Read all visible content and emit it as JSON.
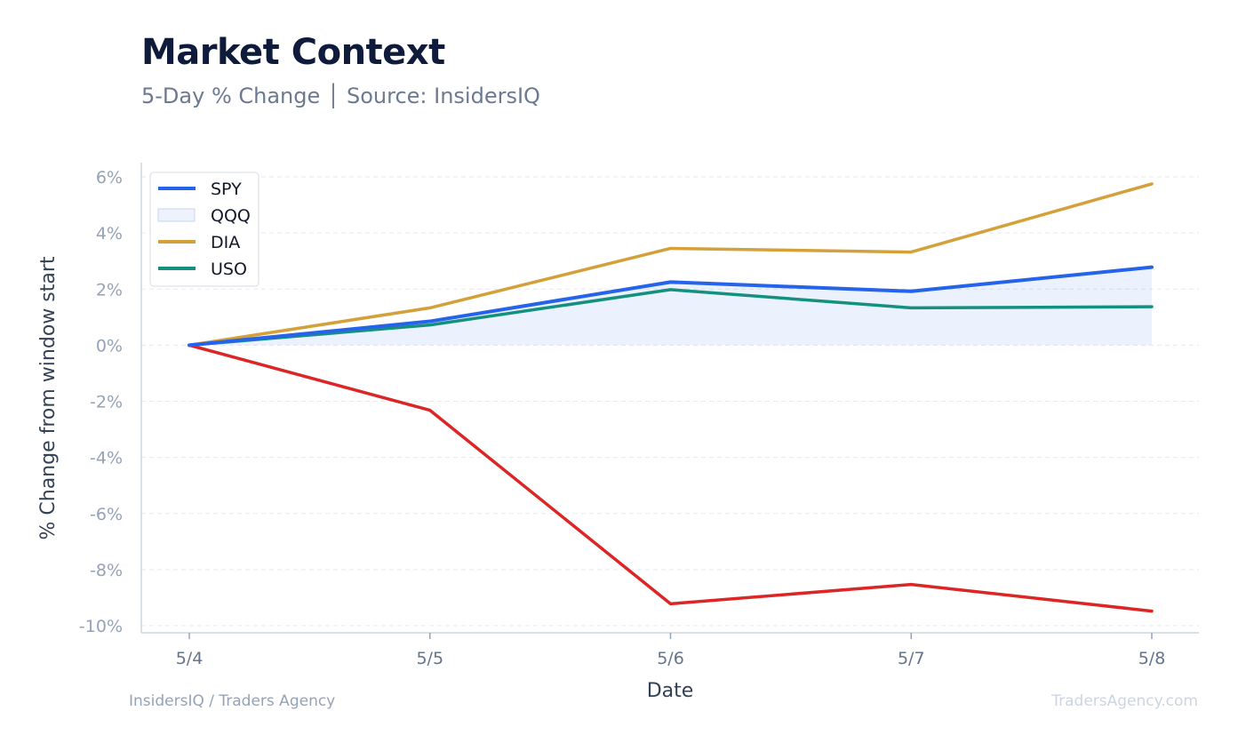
{
  "header": {
    "title": "Market Context",
    "subtitle": "5-Day % Change │ Source: InsidersIQ"
  },
  "footer": {
    "left": "InsidersIQ / Traders Agency",
    "right": "TradersAgency.com"
  },
  "chart_data": {
    "type": "line",
    "title": "Market Context",
    "subtitle": "5-Day % Change │ Source: InsidersIQ",
    "xlabel": "Date",
    "ylabel": "% Change from window start",
    "categories": [
      "5/4",
      "5/5",
      "5/6",
      "5/7",
      "5/8"
    ],
    "ylim": [
      -10,
      6
    ],
    "yticks": [
      6,
      4,
      2,
      0,
      -2,
      -4,
      -6,
      -8,
      -10
    ],
    "ytick_labels": [
      "6%",
      "4%",
      "2%",
      "0%",
      "-2%",
      "-4%",
      "-6%",
      "-8%",
      "-10%"
    ],
    "grid": true,
    "legend_position": "top-left",
    "legend": [
      {
        "name": "SPY",
        "style": "line",
        "color": "#2563eb"
      },
      {
        "name": "QQQ",
        "style": "area",
        "color": "#dbe6fb"
      },
      {
        "name": "DIA",
        "style": "line",
        "color": "#d4a03a"
      },
      {
        "name": "USO",
        "style": "line",
        "color": "#14907f"
      }
    ],
    "series": [
      {
        "name": "SPY",
        "color": "#2563eb",
        "values": [
          0,
          0.85,
          2.25,
          1.92,
          2.78
        ],
        "fill": true
      },
      {
        "name": "DIA",
        "color": "#d4a03a",
        "values": [
          0,
          1.33,
          3.45,
          3.32,
          5.75
        ]
      },
      {
        "name": "USO",
        "color": "#14907f",
        "values": [
          0,
          0.72,
          1.98,
          1.33,
          1.37
        ]
      },
      {
        "color": "#dc2626",
        "values": [
          0,
          -2.32,
          -9.22,
          -8.53,
          -9.48
        ]
      }
    ]
  }
}
